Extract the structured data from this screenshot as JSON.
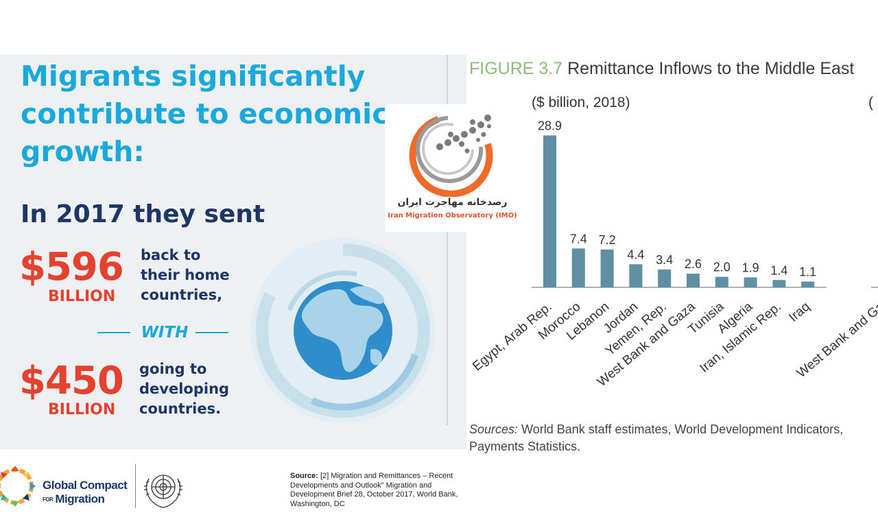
{
  "infographic": {
    "headline": "Migrants significantly contribute to economic growth:",
    "subhead": "In 2017 they sent",
    "amount1": "$596",
    "amount1_unit": "BILLION",
    "amount1_text": [
      "back to",
      "their home",
      "countries,"
    ],
    "with_text": "WITH",
    "amount2": "$450",
    "amount2_unit": "BILLION",
    "amount2_text": [
      "going to",
      "developing",
      "countries."
    ]
  },
  "watermark_logo": {
    "name_fa": "رصدخانه مهاجرت ایران",
    "name_en": "Iran Migration Observatory (IMO)"
  },
  "figure": {
    "label": "FIGURE 3.7",
    "title": "Remittance Inflows to the Middle East",
    "unit_left": "($ billion, 2018)",
    "unit_right_cut": "(",
    "sources_label": "Sources:",
    "sources_text": "World Bank staff estimates, World Development Indicators,",
    "sources_line2": "Payments Statistics."
  },
  "chart_data": {
    "type": "bar",
    "title": "",
    "categories": [
      "Egypt, Arab Rep.",
      "Morocco",
      "Lebanon",
      "Jordan",
      "Yemen, Rep.",
      "West Bank and Gaza",
      "Tunisia",
      "Algeria",
      "Iran, Islamic Rep.",
      "Iraq"
    ],
    "values": [
      28.9,
      7.4,
      7.2,
      4.4,
      3.4,
      2.6,
      2.0,
      1.9,
      1.4,
      1.1
    ],
    "value_labels": [
      "28.9",
      "7.4",
      "7.2",
      "4.4",
      "3.4",
      "2.6",
      "2.0",
      "1.9",
      "1.4",
      "1.1"
    ],
    "ylim": [
      0,
      30
    ],
    "bar_color": "#5e8fa3",
    "partial_second_panel_label": "West Bank and Ga",
    "grid": false
  },
  "footer": {
    "gcm_line1": "Global Compact",
    "gcm_for": "FOR",
    "gcm_line2": "Migration",
    "source_label": "Source:",
    "source_text": "[2] Migration and Remittances – Recent Developments and Outlook\" Migration and Development Brief 28, October 2017, World Bank, Washington, DC"
  },
  "colors": {
    "headline_blue": "#19a9dc",
    "navy": "#1c3668",
    "accent_red": "#e5412f",
    "figure_label_green": "#8dbb7a"
  }
}
